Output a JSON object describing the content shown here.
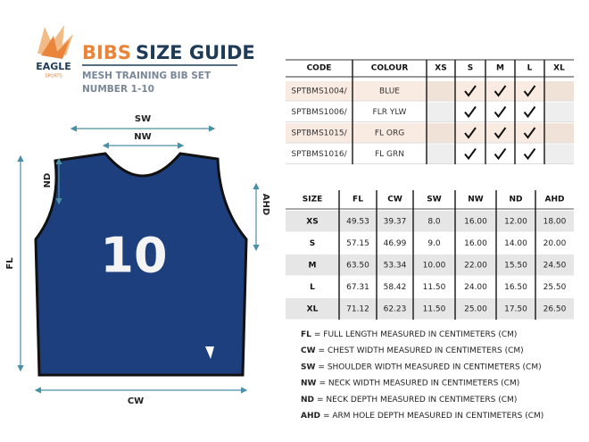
{
  "brand": {
    "name": "EAGLE",
    "tagline": "SPORTS"
  },
  "header": {
    "title_accent": "BIBS",
    "title": "SIZE GUIDE",
    "subtitle": [
      "MESH TRAINING BIB SET",
      "NUMBER 1-10"
    ]
  },
  "diagram": {
    "bib_number": "10",
    "sw": "SW",
    "nw": "NW",
    "nd": "ND",
    "ahd": "AHD",
    "fl": "FL",
    "cw": "CW"
  },
  "stock_table": {
    "headers": [
      "CODE",
      "COLOUR",
      "XS",
      "S",
      "M",
      "L",
      "XL"
    ],
    "rows": [
      {
        "code": "SPTBMS1004/",
        "colour": "BLUE",
        "available": [
          false,
          true,
          true,
          true,
          false
        ]
      },
      {
        "code": "SPTBMS1006/",
        "colour": "FLR YLW",
        "available": [
          false,
          true,
          true,
          true,
          false
        ]
      },
      {
        "code": "SPTBMS1015/",
        "colour": "FL ORG",
        "available": [
          false,
          true,
          true,
          true,
          false
        ]
      },
      {
        "code": "SPTBMS1016/",
        "colour": "FL GRN",
        "available": [
          false,
          true,
          true,
          true,
          false
        ]
      }
    ]
  },
  "size_table": {
    "headers": [
      "SIZE",
      "FL",
      "CW",
      "SW",
      "NW",
      "ND",
      "AHD"
    ],
    "rows": [
      [
        "XS",
        "49.53",
        "39.37",
        "8.0",
        "16.00",
        "12.00",
        "18.00"
      ],
      [
        "S",
        "57.15",
        "46.99",
        "9.0",
        "16.00",
        "14.00",
        "20.00"
      ],
      [
        "M",
        "63.50",
        "53.34",
        "10.00",
        "22.00",
        "15.50",
        "24.50"
      ],
      [
        "L",
        "67.31",
        "58.42",
        "11.50",
        "24.00",
        "16.50",
        "25.50"
      ],
      [
        "XL",
        "71.12",
        "62.23",
        "11.50",
        "25.00",
        "17.50",
        "26.50"
      ]
    ]
  },
  "legend": [
    {
      "abbr": "FL",
      "text": "= FULL LENGTH MEASURED IN CENTIMETERS (CM)"
    },
    {
      "abbr": "CW",
      "text": "= CHEST WIDTH MEASURED IN CENTIMETERS (CM)"
    },
    {
      "abbr": "SW",
      "text": "= SHOULDER WIDTH MEASURED IN CENTIMETERS (CM)"
    },
    {
      "abbr": "NW",
      "text": "= NECK WIDTH MEASURED IN CENTIMETERS (CM)"
    },
    {
      "abbr": "ND",
      "text": "= NECK DEPTH MEASURED IN CENTIMETERS (CM)"
    },
    {
      "abbr": "AHD",
      "text": "= ARM HOLE DEPTH MEASURED IN CENTIMETERS (CM)"
    }
  ]
}
